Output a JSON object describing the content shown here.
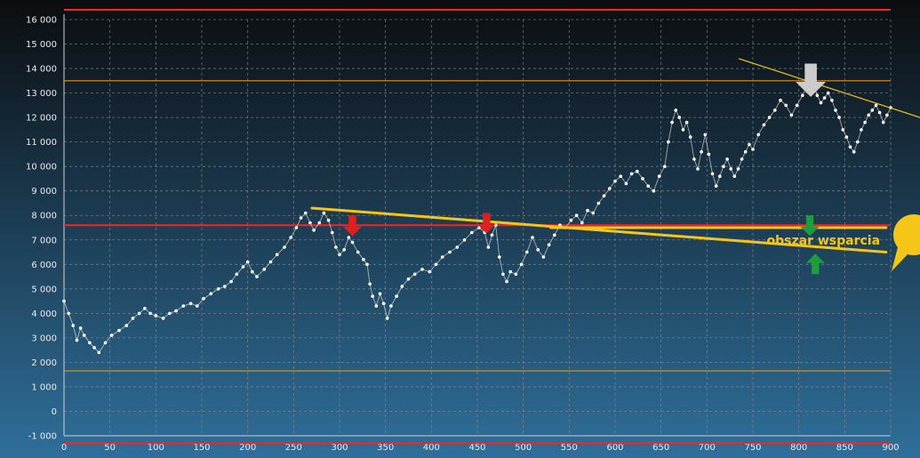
{
  "chart_data": {
    "type": "scatter",
    "title": "",
    "xlabel": "",
    "ylabel": "",
    "xlim": [
      0,
      900
    ],
    "ylim": [
      -1000,
      16000
    ],
    "grid": true,
    "x_ticks": [
      "0",
      "50",
      "100",
      "150",
      "200",
      "250",
      "300",
      "350",
      "400",
      "450",
      "500",
      "550",
      "600",
      "650",
      "700",
      "750",
      "800",
      "850",
      "900"
    ],
    "y_ticks": [
      "-1 000",
      "0",
      "1 000",
      "2 000",
      "3 000",
      "4 000",
      "5 000",
      "6 000",
      "7 000",
      "8 000",
      "9 000",
      "10 000",
      "11 000",
      "12 000",
      "13 000",
      "14 000",
      "15 000",
      "16 000"
    ],
    "series": [
      {
        "marker": "white-dot",
        "points": [
          [
            0,
            4500
          ],
          [
            5,
            4000
          ],
          [
            10,
            3500
          ],
          [
            14,
            2900
          ],
          [
            18,
            3400
          ],
          [
            22,
            3100
          ],
          [
            28,
            2800
          ],
          [
            33,
            2600
          ],
          [
            38,
            2400
          ],
          [
            45,
            2800
          ],
          [
            52,
            3100
          ],
          [
            60,
            3300
          ],
          [
            68,
            3500
          ],
          [
            75,
            3800
          ],
          [
            82,
            4000
          ],
          [
            88,
            4200
          ],
          [
            94,
            4000
          ],
          [
            100,
            3900
          ],
          [
            108,
            3800
          ],
          [
            115,
            4000
          ],
          [
            122,
            4100
          ],
          [
            130,
            4300
          ],
          [
            138,
            4400
          ],
          [
            145,
            4300
          ],
          [
            152,
            4600
          ],
          [
            160,
            4800
          ],
          [
            168,
            5000
          ],
          [
            175,
            5100
          ],
          [
            182,
            5300
          ],
          [
            188,
            5600
          ],
          [
            195,
            5900
          ],
          [
            200,
            6100
          ],
          [
            205,
            5700
          ],
          [
            210,
            5500
          ],
          [
            218,
            5800
          ],
          [
            225,
            6100
          ],
          [
            232,
            6400
          ],
          [
            240,
            6700
          ],
          [
            247,
            7100
          ],
          [
            253,
            7500
          ],
          [
            258,
            7900
          ],
          [
            263,
            8100
          ],
          [
            268,
            7700
          ],
          [
            272,
            7400
          ],
          [
            278,
            7700
          ],
          [
            283,
            8100
          ],
          [
            288,
            7800
          ],
          [
            292,
            7300
          ],
          [
            296,
            6700
          ],
          [
            300,
            6400
          ],
          [
            305,
            6600
          ],
          [
            310,
            7100
          ],
          [
            314,
            6900
          ],
          [
            320,
            6500
          ],
          [
            326,
            6200
          ],
          [
            330,
            6000
          ],
          [
            333,
            5200
          ],
          [
            336,
            4700
          ],
          [
            340,
            4300
          ],
          [
            344,
            4800
          ],
          [
            348,
            4400
          ],
          [
            352,
            3800
          ],
          [
            356,
            4300
          ],
          [
            362,
            4700
          ],
          [
            368,
            5100
          ],
          [
            375,
            5400
          ],
          [
            382,
            5600
          ],
          [
            390,
            5800
          ],
          [
            398,
            5700
          ],
          [
            405,
            6000
          ],
          [
            412,
            6300
          ],
          [
            420,
            6500
          ],
          [
            428,
            6700
          ],
          [
            436,
            7000
          ],
          [
            444,
            7300
          ],
          [
            452,
            7500
          ],
          [
            458,
            7300
          ],
          [
            462,
            6700
          ],
          [
            466,
            7200
          ],
          [
            470,
            7600
          ],
          [
            474,
            6300
          ],
          [
            478,
            5600
          ],
          [
            482,
            5300
          ],
          [
            486,
            5700
          ],
          [
            492,
            5600
          ],
          [
            498,
            6000
          ],
          [
            504,
            6500
          ],
          [
            510,
            7100
          ],
          [
            516,
            6600
          ],
          [
            522,
            6300
          ],
          [
            528,
            6800
          ],
          [
            534,
            7200
          ],
          [
            540,
            7600
          ],
          [
            546,
            7500
          ],
          [
            552,
            7800
          ],
          [
            558,
            8000
          ],
          [
            564,
            7700
          ],
          [
            570,
            8200
          ],
          [
            576,
            8100
          ],
          [
            582,
            8500
          ],
          [
            588,
            8800
          ],
          [
            594,
            9100
          ],
          [
            600,
            9400
          ],
          [
            606,
            9600
          ],
          [
            612,
            9300
          ],
          [
            618,
            9700
          ],
          [
            624,
            9800
          ],
          [
            630,
            9500
          ],
          [
            636,
            9200
          ],
          [
            642,
            9000
          ],
          [
            648,
            9600
          ],
          [
            654,
            10000
          ],
          [
            658,
            11000
          ],
          [
            662,
            11800
          ],
          [
            666,
            12300
          ],
          [
            670,
            12000
          ],
          [
            674,
            11500
          ],
          [
            678,
            11800
          ],
          [
            682,
            11200
          ],
          [
            686,
            10300
          ],
          [
            690,
            9900
          ],
          [
            694,
            10600
          ],
          [
            698,
            11300
          ],
          [
            702,
            10500
          ],
          [
            706,
            9700
          ],
          [
            710,
            9200
          ],
          [
            714,
            9600
          ],
          [
            718,
            10000
          ],
          [
            722,
            10300
          ],
          [
            726,
            9900
          ],
          [
            730,
            9600
          ],
          [
            734,
            9900
          ],
          [
            738,
            10300
          ],
          [
            742,
            10600
          ],
          [
            746,
            10900
          ],
          [
            750,
            10700
          ],
          [
            756,
            11300
          ],
          [
            762,
            11700
          ],
          [
            768,
            12000
          ],
          [
            774,
            12300
          ],
          [
            780,
            12700
          ],
          [
            786,
            12500
          ],
          [
            792,
            12100
          ],
          [
            798,
            12500
          ],
          [
            804,
            12900
          ],
          [
            808,
            13200
          ],
          [
            812,
            13100
          ],
          [
            816,
            13400
          ],
          [
            820,
            12900
          ],
          [
            824,
            12600
          ],
          [
            828,
            12800
          ],
          [
            832,
            13000
          ],
          [
            836,
            12700
          ],
          [
            840,
            12300
          ],
          [
            844,
            12000
          ],
          [
            848,
            11500
          ],
          [
            852,
            11200
          ],
          [
            856,
            10800
          ],
          [
            860,
            10600
          ],
          [
            864,
            11000
          ],
          [
            868,
            11500
          ],
          [
            872,
            11800
          ],
          [
            876,
            12100
          ],
          [
            880,
            12300
          ],
          [
            884,
            12500
          ],
          [
            888,
            12200
          ],
          [
            892,
            11800
          ],
          [
            896,
            12100
          ],
          [
            900,
            12400
          ]
        ]
      }
    ],
    "reference_lines": [
      {
        "y": 16400,
        "color": "#ff2020"
      },
      {
        "y": 13500,
        "color": "#e8930e"
      },
      {
        "y": 7600,
        "color": "#ff2020"
      },
      {
        "y": 1650,
        "color": "#e8930e"
      },
      {
        "y": -1300,
        "color": "#ff2020"
      }
    ],
    "trend_lines": [
      {
        "from": [
          270,
          8300
        ],
        "to": [
          895,
          6500
        ],
        "color": "#f5c518"
      },
      {
        "from": [
          530,
          7500
        ],
        "to": [
          895,
          7500
        ],
        "color": "#f5c518"
      },
      {
        "from": [
          735,
          14400
        ],
        "to": [
          932,
          12000
        ],
        "color": "#f5c518"
      }
    ],
    "annotations": [
      {
        "text": "obszar wsparcia",
        "x": 765,
        "y": 7000,
        "color": "#f5c518"
      }
    ],
    "arrows": [
      {
        "x": 314,
        "y": 8000,
        "dir": "down",
        "color": "#e02020"
      },
      {
        "x": 460,
        "y": 8100,
        "dir": "down",
        "color": "#e02020"
      },
      {
        "x": 813,
        "y": 14200,
        "dir": "down",
        "color": "#cccccc"
      },
      {
        "x": 812,
        "y": 8000,
        "dir": "down",
        "color": "#1e9e3a"
      },
      {
        "x": 818,
        "y": 5600,
        "dir": "up",
        "color": "#1e9e3a"
      }
    ],
    "colors": {
      "background_top": "#0b0d10",
      "background_bottom": "#2f6f9a",
      "grid": "#8a8f98",
      "point": "#ffffff"
    }
  }
}
